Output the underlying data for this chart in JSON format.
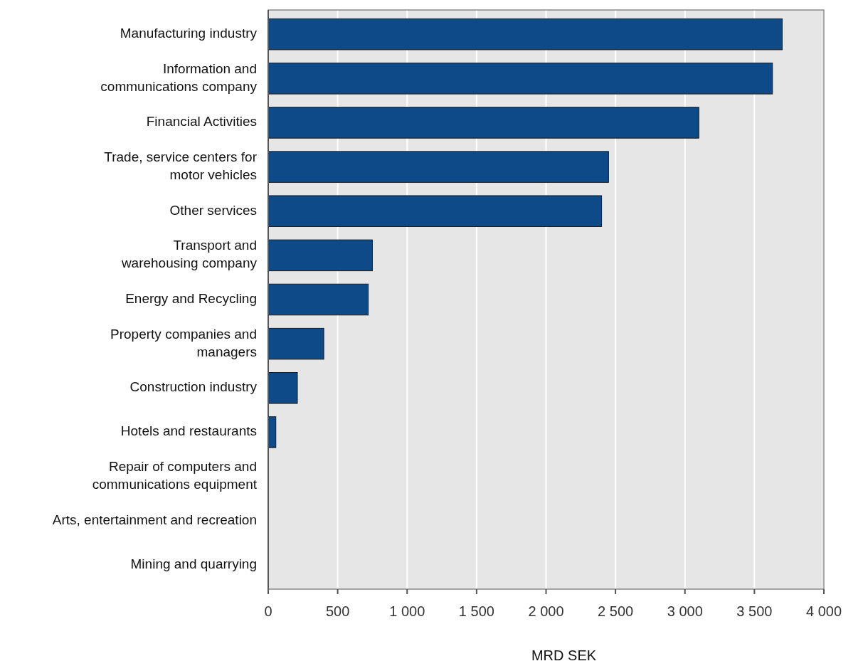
{
  "chart_data": {
    "type": "bar",
    "orientation": "horizontal",
    "xlabel": "MRD SEK",
    "categories": [
      "Manufacturing industry",
      "Information and\ncommunications company",
      "Financial Activities",
      "Trade, service centers for\nmotor vehicles",
      "Other services",
      "Transport and\nwarehousing company",
      "Energy and Recycling",
      "Property companies and\nmanagers",
      "Construction industry",
      "Hotels and restaurants",
      "Repair of computers and\ncommunications equipment",
      "Arts, entertainment and recreation",
      "Mining and quarrying"
    ],
    "values": [
      3700,
      3630,
      3100,
      2450,
      2400,
      750,
      720,
      400,
      210,
      55,
      0,
      0,
      0
    ],
    "color": "#0e4a87",
    "xlim": [
      0,
      4000
    ],
    "xticks": [
      0,
      {
        "value": 500,
        "label": "500"
      },
      {
        "value": 1000,
        "label": "1 000"
      },
      {
        "value": 1500,
        "label": "1 500"
      },
      {
        "value": 2000,
        "label": "2 000"
      },
      {
        "value": 2500,
        "label": "2 500"
      },
      {
        "value": 3000,
        "label": "3 000"
      },
      {
        "value": 3500,
        "label": "3 500"
      },
      {
        "value": 4000,
        "label": "4 000"
      }
    ],
    "grid": "x"
  }
}
